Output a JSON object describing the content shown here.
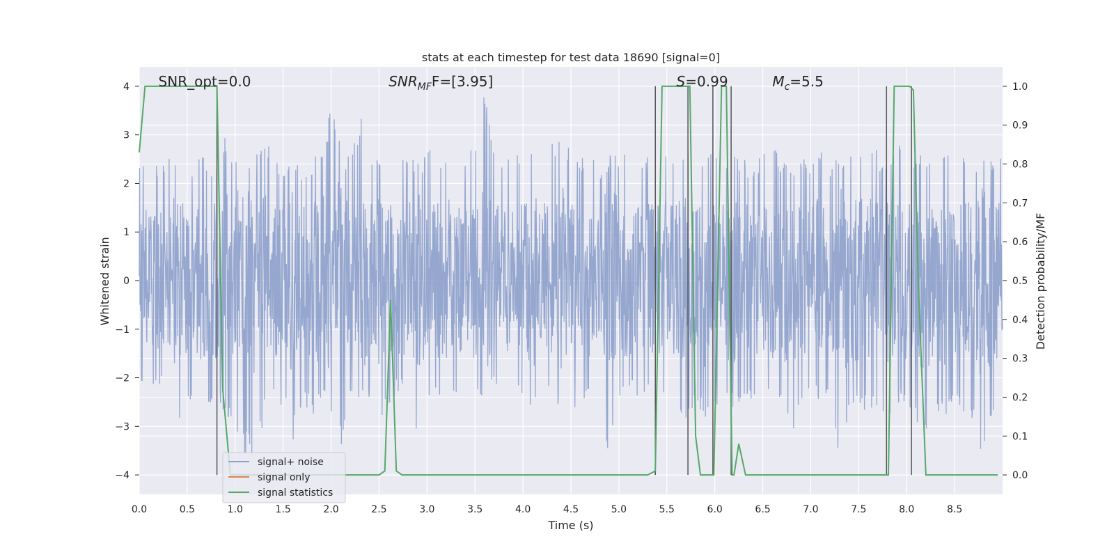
{
  "chart_data": {
    "type": "line",
    "title": "stats at each timestep for test data 18690 [signal=0]",
    "xlabel": "Time (s)",
    "ylabel_left": "Whitened strain",
    "ylabel_right": "Detection probability/MF",
    "xlim": [
      0,
      9.0
    ],
    "ylim_left": [
      -4.4,
      4.4
    ],
    "ylim_right": [
      -0.05,
      1.05
    ],
    "xticks": [
      "0.0",
      "0.5",
      "1.0",
      "1.5",
      "2.0",
      "2.5",
      "3.0",
      "3.5",
      "4.0",
      "4.5",
      "5.0",
      "5.5",
      "6.0",
      "6.5",
      "7.0",
      "7.5",
      "8.0",
      "8.5"
    ],
    "yticks_left": [
      "4",
      "3",
      "2",
      "1",
      "0",
      "−1",
      "−2",
      "−3",
      "−4"
    ],
    "yticks_right": [
      "1.0",
      "0.9",
      "0.8",
      "0.7",
      "0.6",
      "0.5",
      "0.4",
      "0.3",
      "0.2",
      "0.1",
      "0.0"
    ],
    "grid": true,
    "legend_position": "lower-left",
    "annotations": [
      {
        "text": "SNR_opt=0.0",
        "x": 0.2
      },
      {
        "text": "SNR",
        "sub": "MF",
        "text_after": "F=[3.95]",
        "x": 2.6
      },
      {
        "text": "S",
        "text_after": "=0.99",
        "x": 5.6
      },
      {
        "text": "M",
        "sub": "c",
        "text_after": "=5.5",
        "x": 6.6
      }
    ],
    "series": [
      {
        "name": "signal+ noise",
        "color": "#8da0cb",
        "envelope_x": [
          0,
          0.1,
          0.2,
          0.3,
          0.4,
          0.5,
          0.6,
          0.7,
          0.8,
          0.9,
          1.0,
          1.1,
          1.2,
          1.3,
          1.4,
          1.5,
          1.6,
          1.7,
          1.8,
          1.9,
          2.0,
          2.1,
          2.2,
          2.3,
          2.4,
          2.5,
          2.6,
          2.7,
          2.8,
          2.9,
          3.0,
          3.1,
          3.2,
          3.3,
          3.4,
          3.5,
          3.6,
          3.7,
          3.8,
          3.9,
          4.0,
          4.1,
          4.2,
          4.3,
          4.4,
          4.5,
          4.6,
          4.7,
          4.8,
          4.9,
          5.0,
          5.1,
          5.2,
          5.3,
          5.4,
          5.5,
          5.6,
          5.7,
          5.8,
          5.9,
          6.0,
          6.1,
          6.2,
          6.3,
          6.4,
          6.5,
          6.6,
          6.7,
          6.8,
          6.9,
          7.0,
          7.1,
          7.2,
          7.3,
          7.4,
          7.5,
          7.6,
          7.7,
          7.8,
          7.9,
          8.0,
          8.1,
          8.2,
          8.3,
          8.4,
          8.5,
          8.6,
          8.7,
          8.8,
          8.9,
          9.0
        ],
        "envelope_max": [
          2.5,
          2.6,
          2.4,
          2.5,
          2.6,
          2.3,
          2.6,
          2.5,
          2.4,
          3.1,
          2.6,
          2.5,
          2.7,
          3.2,
          2.4,
          2.5,
          2.6,
          2.3,
          2.5,
          2.7,
          3.6,
          2.8,
          2.5,
          3.5,
          2.7,
          2.6,
          2.8,
          2.5,
          2.6,
          2.4,
          2.7,
          2.8,
          2.5,
          2.6,
          2.7,
          2.9,
          4.0,
          2.7,
          2.5,
          2.9,
          2.6,
          3.0,
          2.6,
          2.8,
          3.2,
          2.6,
          2.5,
          2.7,
          2.4,
          2.6,
          2.6,
          2.7,
          2.5,
          2.6,
          2.7,
          2.6,
          2.5,
          2.7,
          2.6,
          2.8,
          2.5,
          2.7,
          2.6,
          2.5,
          2.4,
          2.6,
          2.8,
          2.5,
          2.5,
          2.6,
          2.4,
          2.9,
          2.5,
          2.7,
          2.6,
          2.8,
          3.2,
          2.6,
          2.4,
          2.8,
          2.7,
          2.6,
          2.7,
          2.5,
          2.6,
          2.5,
          2.6,
          2.4,
          2.5,
          2.6,
          2.5
        ],
        "envelope_min": [
          -2.3,
          -2.2,
          -2.1,
          -2.6,
          -3.3,
          -2.4,
          -2.8,
          -2.5,
          -2.6,
          -2.7,
          -3.2,
          -3.6,
          -3.8,
          -2.9,
          -2.4,
          -2.6,
          -3.4,
          -2.6,
          -2.8,
          -2.5,
          -2.9,
          -3.5,
          -2.4,
          -2.6,
          -2.4,
          -2.9,
          -2.8,
          -2.3,
          -2.5,
          -3.4,
          -2.6,
          -2.2,
          -2.8,
          -2.4,
          -2.3,
          -2.6,
          -2.3,
          -2.2,
          -2.4,
          -2.6,
          -2.3,
          -2.8,
          -2.4,
          -2.5,
          -2.9,
          -3.0,
          -2.6,
          -2.4,
          -2.5,
          -3.8,
          -2.6,
          -2.2,
          -2.4,
          -2.5,
          -2.6,
          -2.7,
          -2.6,
          -3.0,
          -2.5,
          -2.9,
          -2.6,
          -2.4,
          -2.8,
          -2.5,
          -2.6,
          -2.3,
          -2.4,
          -2.5,
          -3.3,
          -2.6,
          -2.3,
          -2.6,
          -2.4,
          -4.0,
          -2.6,
          -2.8,
          -2.7,
          -2.6,
          -3.0,
          -2.5,
          -2.6,
          -2.9,
          -3.1,
          -2.6,
          -2.9,
          -2.6,
          -2.7,
          -3.0,
          -4.0,
          -2.7,
          -2.4
        ]
      },
      {
        "name": "signal only",
        "color": "#dd8452",
        "x": [
          0,
          9.0
        ],
        "y": [
          0,
          0
        ]
      },
      {
        "name": "signal statistics",
        "color": "#55a868",
        "axis": "right",
        "x": [
          0,
          0.06,
          0.12,
          0.2,
          0.3,
          0.5,
          0.7,
          0.8,
          0.81,
          0.87,
          0.95,
          1.0,
          1.2,
          1.5,
          2.0,
          2.3,
          2.5,
          2.56,
          2.62,
          2.68,
          2.74,
          3.0,
          3.5,
          4.0,
          4.5,
          5.0,
          5.3,
          5.38,
          5.45,
          5.5,
          5.55,
          5.6,
          5.7,
          5.74,
          5.8,
          5.85,
          5.92,
          5.99,
          6.07,
          6.12,
          6.18,
          6.2,
          6.25,
          6.32,
          6.4,
          6.6,
          7.0,
          7.5,
          7.7,
          7.77,
          7.81,
          7.87,
          7.95,
          8.03,
          8.07,
          8.12,
          8.2,
          8.3,
          8.5,
          8.7,
          8.95
        ],
        "y": [
          0.83,
          1.0,
          1.0,
          1.0,
          1.0,
          1.0,
          1.0,
          1.0,
          1.0,
          0.22,
          0.0,
          0.0,
          0.0,
          0.0,
          0.0,
          0.0,
          0.0,
          0.01,
          0.45,
          0.01,
          0.0,
          0.0,
          0.0,
          0.0,
          0.0,
          0.0,
          0.0,
          0.01,
          1.0,
          1.0,
          1.0,
          1.0,
          1.0,
          1.0,
          0.1,
          0.0,
          0.0,
          0.0,
          1.0,
          1.0,
          0.0,
          0.0,
          0.08,
          0.0,
          0.0,
          0.0,
          0.0,
          0.0,
          0.0,
          0.0,
          0.0,
          1.0,
          1.0,
          1.0,
          0.99,
          0.5,
          0.0,
          0.0,
          0.0,
          0.0,
          0.0
        ]
      }
    ],
    "vertical_lines_x": [
      0.81,
      5.38,
      5.72,
      5.98,
      6.17,
      7.79,
      8.05
    ]
  }
}
